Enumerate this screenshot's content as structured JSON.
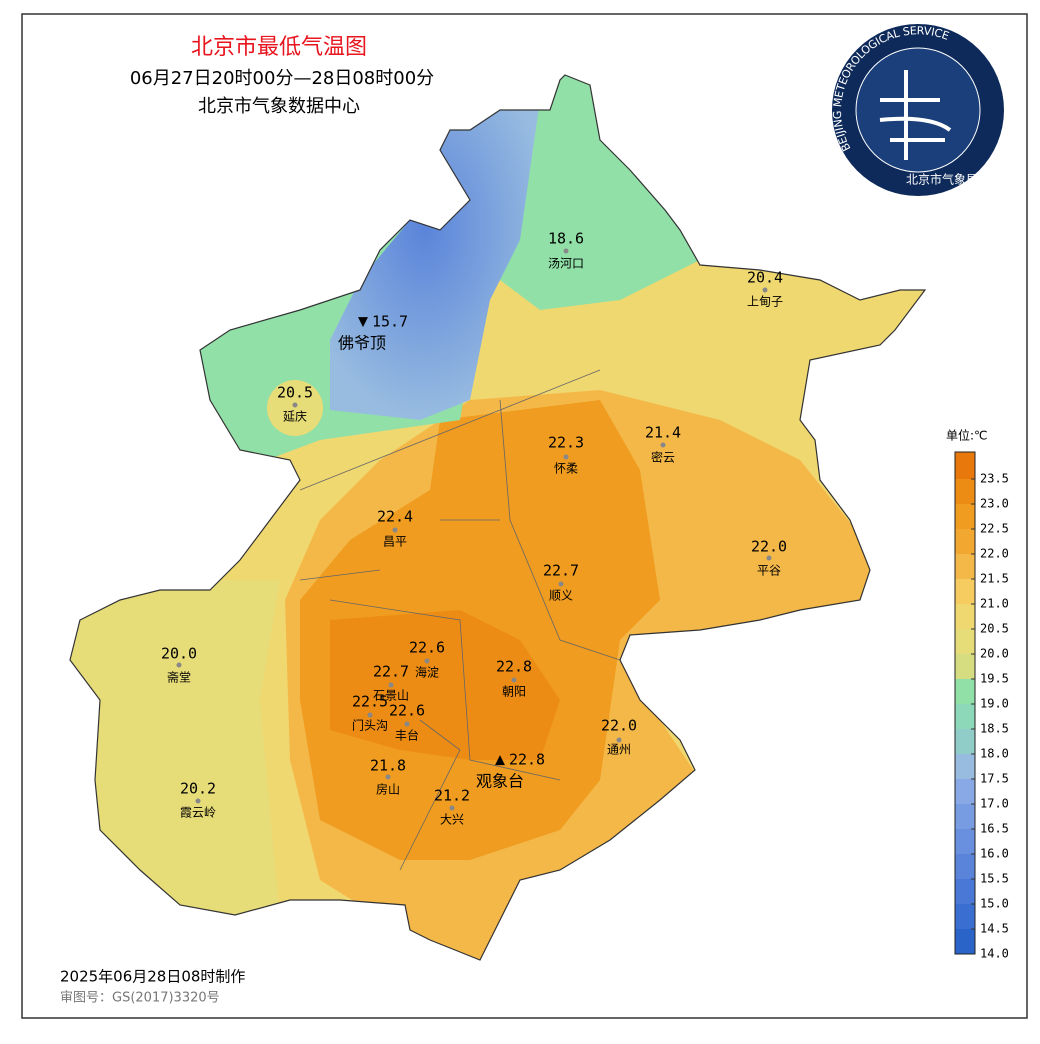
{
  "header": {
    "title": "北京市最低气温图",
    "period": "06月27日20时00分—28日08时00分",
    "issuer": "北京市气象数据中心"
  },
  "logo": {
    "text": "BEIJING METEOROLOGICAL SERVICE",
    "name": "北京市气象局"
  },
  "stations": [
    {
      "value": "18.6",
      "name": "汤河口"
    },
    {
      "value": "20.4",
      "name": "上甸子"
    },
    {
      "value": "15.7",
      "name": "佛爷顶"
    },
    {
      "value": "20.5",
      "name": "延庆"
    },
    {
      "value": "22.3",
      "name": "怀柔"
    },
    {
      "value": "21.4",
      "name": "密云"
    },
    {
      "value": "22.4",
      "name": "昌平"
    },
    {
      "value": "22.0",
      "name": "平谷"
    },
    {
      "value": "22.7",
      "name": "顺义"
    },
    {
      "value": "20.0",
      "name": "斋堂"
    },
    {
      "value": "22.6",
      "name": "海淀"
    },
    {
      "value": "22.7",
      "name": "石景山"
    },
    {
      "value": "22.5",
      "name": "门头沟"
    },
    {
      "value": "22.6",
      "name": "丰台"
    },
    {
      "value": "22.8",
      "name": "朝阳"
    },
    {
      "value": "22.0",
      "name": "通州"
    },
    {
      "value": "21.8",
      "name": "房山"
    },
    {
      "value": "22.8",
      "name": "观象台"
    },
    {
      "value": "21.2",
      "name": "大兴"
    },
    {
      "value": "20.2",
      "name": "霞云岭"
    }
  ],
  "legend": {
    "title": "单位:℃",
    "levels": [
      {
        "label": "14.0",
        "color": "#2a64c8"
      },
      {
        "label": "14.5",
        "color": "#3a6ed0"
      },
      {
        "label": "15.0",
        "color": "#4a78d6"
      },
      {
        "label": "15.5",
        "color": "#5a84da"
      },
      {
        "label": "16.0",
        "color": "#6890de"
      },
      {
        "label": "16.5",
        "color": "#789ce2"
      },
      {
        "label": "17.0",
        "color": "#88a8e6"
      },
      {
        "label": "17.5",
        "color": "#98bce0"
      },
      {
        "label": "18.0",
        "color": "#90ccc8"
      },
      {
        "label": "18.5",
        "color": "#8cd8b8"
      },
      {
        "label": "19.0",
        "color": "#90e0a8"
      },
      {
        "label": "19.5",
        "color": "#d6dc80"
      },
      {
        "label": "20.0",
        "color": "#e6dc78"
      },
      {
        "label": "20.5",
        "color": "#f0d870"
      },
      {
        "label": "21.0",
        "color": "#f6cc60"
      },
      {
        "label": "21.5",
        "color": "#f4b848"
      },
      {
        "label": "22.0",
        "color": "#f2a830"
      },
      {
        "label": "22.5",
        "color": "#ef9c20"
      },
      {
        "label": "23.0",
        "color": "#ec8c14"
      },
      {
        "label": "23.5",
        "color": "#e8780c"
      }
    ]
  },
  "footer": {
    "made": "2025年06月28日08时制作",
    "approval": "审图号：GS(2017)3320号"
  }
}
